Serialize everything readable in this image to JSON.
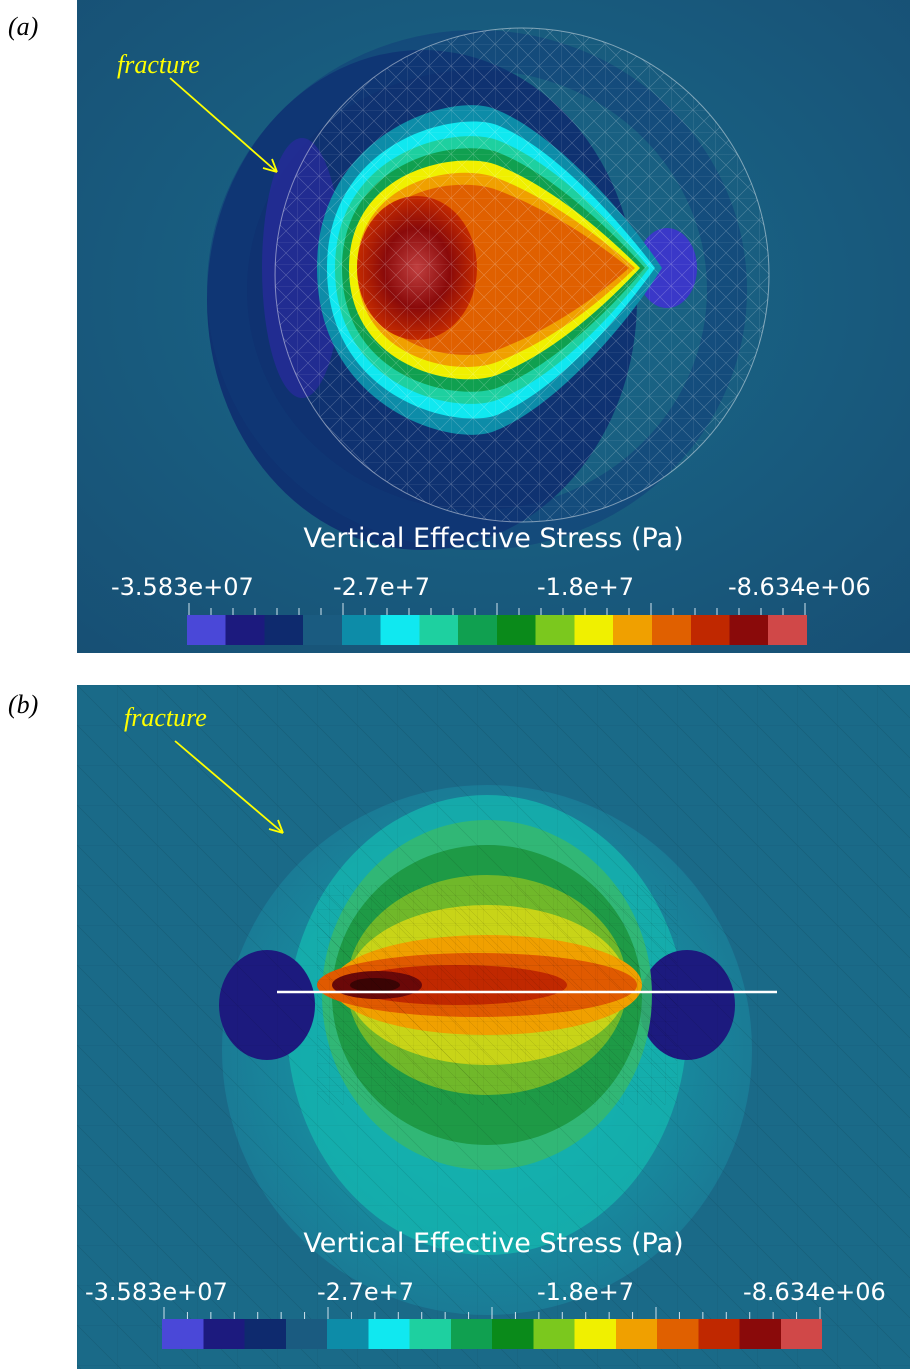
{
  "panel_a": {
    "label": "(a)",
    "annotation": "fracture",
    "colorbar": {
      "title": "Vertical Effective Stress (Pa)",
      "ticks": [
        "-3.583e+07",
        "-2.7e+7",
        "-1.8e+7",
        "-8.634e+06"
      ]
    }
  },
  "panel_b": {
    "label": "(b)",
    "annotation": "fracture",
    "colorbar": {
      "title": "Vertical Effective Stress (Pa)",
      "ticks": [
        "-3.583e+07",
        "-2.7e+7",
        "-1.8e+7",
        "-8.634e+06"
      ]
    }
  },
  "colors": {
    "background": "#1a5b80",
    "annotation": "#ffff00",
    "fracture_line": "#ffffff",
    "colormap": [
      "#4a48d8",
      "#1c1a7e",
      "#0e2a6e",
      "#1a5b80",
      "#0d8ca8",
      "#10e8f0",
      "#1ed0a0",
      "#10a050",
      "#0a8a1a",
      "#7bc81e",
      "#f0f000",
      "#f0a000",
      "#e06000",
      "#c02800",
      "#8a0a0a",
      "#d04848"
    ]
  }
}
